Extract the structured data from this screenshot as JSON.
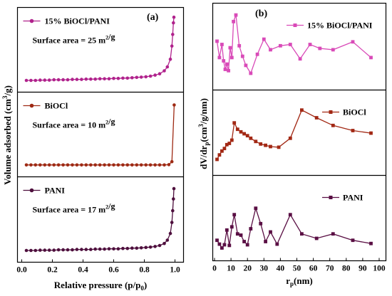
{
  "figure": {
    "panel_a_label": "(a)",
    "panel_b_label": "(b)"
  },
  "chart_data": [
    {
      "type": "scatter",
      "panel": "(a)",
      "xlabel": "Relative pressure (p/p0)",
      "ylabel": "Volume adsorbed (cm3/g)",
      "xlim": [
        0.0,
        1.0
      ],
      "xticks": [
        "0.0",
        "0.2",
        "0.4",
        "0.6",
        "0.8",
        "1.0"
      ],
      "grid": false,
      "series": [
        {
          "name": "15% BiOCl/PANI",
          "annotation": "Surface area = 25 m2/g",
          "color": "#b0228c",
          "x": [
            0.03,
            0.06,
            0.09,
            0.12,
            0.15,
            0.18,
            0.21,
            0.24,
            0.27,
            0.3,
            0.33,
            0.36,
            0.39,
            0.42,
            0.45,
            0.48,
            0.51,
            0.54,
            0.57,
            0.6,
            0.63,
            0.66,
            0.69,
            0.72,
            0.75,
            0.78,
            0.81,
            0.84,
            0.87,
            0.9,
            0.93,
            0.95,
            0.97,
            0.98,
            0.985,
            0.99,
            0.993
          ],
          "y": [
            0.1,
            0.1,
            0.1,
            0.2,
            0.2,
            0.2,
            0.3,
            0.3,
            0.3,
            0.3,
            0.4,
            0.4,
            0.4,
            0.5,
            0.5,
            0.5,
            0.6,
            0.6,
            0.6,
            0.7,
            0.7,
            0.8,
            0.8,
            0.9,
            1.0,
            1.1,
            1.2,
            1.4,
            1.7,
            2.1,
            3.0,
            4.2,
            6.5,
            10.5,
            14.0,
            17.5,
            19.2
          ]
        },
        {
          "name": "BiOCl",
          "annotation": "Surface area = 10 m2/g",
          "color": "#9e2a14",
          "x": [
            0.03,
            0.06,
            0.09,
            0.12,
            0.15,
            0.18,
            0.21,
            0.24,
            0.27,
            0.3,
            0.33,
            0.36,
            0.39,
            0.42,
            0.45,
            0.48,
            0.51,
            0.54,
            0.57,
            0.6,
            0.63,
            0.66,
            0.69,
            0.72,
            0.75,
            0.78,
            0.81,
            0.84,
            0.87,
            0.9,
            0.93,
            0.96,
            0.98,
            0.995
          ],
          "y": [
            0.05,
            0.05,
            0.05,
            0.05,
            0.05,
            0.05,
            0.05,
            0.05,
            0.05,
            0.05,
            0.05,
            0.05,
            0.05,
            0.05,
            0.05,
            0.05,
            0.05,
            0.05,
            0.05,
            0.05,
            0.05,
            0.05,
            0.05,
            0.05,
            0.05,
            0.05,
            0.05,
            0.05,
            0.05,
            0.05,
            0.05,
            0.08,
            0.4,
            6.4
          ]
        },
        {
          "name": "PANI",
          "annotation": "Surface area = 17 m2/g",
          "color": "#4e0f3d",
          "x": [
            0.03,
            0.06,
            0.09,
            0.12,
            0.15,
            0.18,
            0.21,
            0.24,
            0.27,
            0.3,
            0.33,
            0.36,
            0.39,
            0.42,
            0.45,
            0.48,
            0.51,
            0.54,
            0.57,
            0.6,
            0.63,
            0.66,
            0.69,
            0.72,
            0.75,
            0.78,
            0.81,
            0.84,
            0.87,
            0.9,
            0.93,
            0.95,
            0.97,
            0.98,
            0.985,
            0.99,
            0.993
          ],
          "y": [
            0.1,
            0.1,
            0.1,
            0.2,
            0.2,
            0.2,
            0.2,
            0.3,
            0.3,
            0.3,
            0.3,
            0.4,
            0.4,
            0.4,
            0.4,
            0.5,
            0.5,
            0.5,
            0.6,
            0.6,
            0.6,
            0.7,
            0.7,
            0.8,
            0.8,
            0.9,
            1.0,
            1.1,
            1.3,
            1.6,
            2.2,
            3.2,
            5.2,
            8.5,
            12.0,
            15.5,
            18.6
          ]
        }
      ]
    },
    {
      "type": "line",
      "panel": "(b)",
      "xlabel": "rp(nm)",
      "ylabel": "dV/drp(cm3/g/nm)",
      "xlim": [
        0,
        100
      ],
      "xticks": [
        "0",
        "10",
        "20",
        "30",
        "40",
        "50",
        "60",
        "70",
        "80",
        "90",
        "100"
      ],
      "grid": false,
      "series": [
        {
          "name": "15% BiOCl/PANI",
          "color": "#d94ab8",
          "x": [
            1.5,
            3,
            4.5,
            5.5,
            6.5,
            7.5,
            8.5,
            9.5,
            10.5,
            11.5,
            13,
            15,
            17,
            19,
            22,
            26,
            30,
            34,
            40,
            46,
            52,
            58,
            64,
            72,
            84,
            95
          ],
          "y": [
            0.55,
            0.3,
            0.5,
            0.25,
            0.12,
            0.2,
            0.1,
            0.45,
            0.3,
            0.85,
            0.95,
            0.48,
            0.32,
            0.18,
            0.06,
            0.35,
            0.58,
            0.42,
            0.48,
            0.5,
            0.28,
            0.5,
            0.44,
            0.42,
            0.54,
            0.3
          ]
        },
        {
          "name": "BiOCl",
          "color": "#a22814",
          "x": [
            1.5,
            3,
            4.5,
            6,
            7.5,
            9,
            10.5,
            12,
            14,
            16,
            18,
            20,
            22,
            25,
            28,
            31,
            34,
            39,
            46,
            53,
            62,
            72,
            84,
            95
          ],
          "y": [
            0.05,
            0.12,
            0.18,
            0.22,
            0.28,
            0.3,
            0.35,
            0.62,
            0.52,
            0.48,
            0.45,
            0.42,
            0.38,
            0.33,
            0.29,
            0.27,
            0.25,
            0.24,
            0.38,
            0.82,
            0.7,
            0.58,
            0.5,
            0.46
          ]
        },
        {
          "name": "PANI",
          "color": "#5a0f44",
          "x": [
            1.5,
            3,
            4.5,
            6,
            7.5,
            9,
            10.5,
            12,
            14,
            16,
            18,
            20,
            22,
            25,
            28,
            31,
            34,
            38,
            46,
            53,
            62,
            72,
            84,
            95
          ],
          "y": [
            0.12,
            0.06,
            0.0,
            0.05,
            0.28,
            0.04,
            0.33,
            0.52,
            0.22,
            0.2,
            0.1,
            0.05,
            0.3,
            0.62,
            0.38,
            0.1,
            0.25,
            0.06,
            0.52,
            0.22,
            0.15,
            0.22,
            0.12,
            0.07
          ]
        }
      ]
    }
  ]
}
